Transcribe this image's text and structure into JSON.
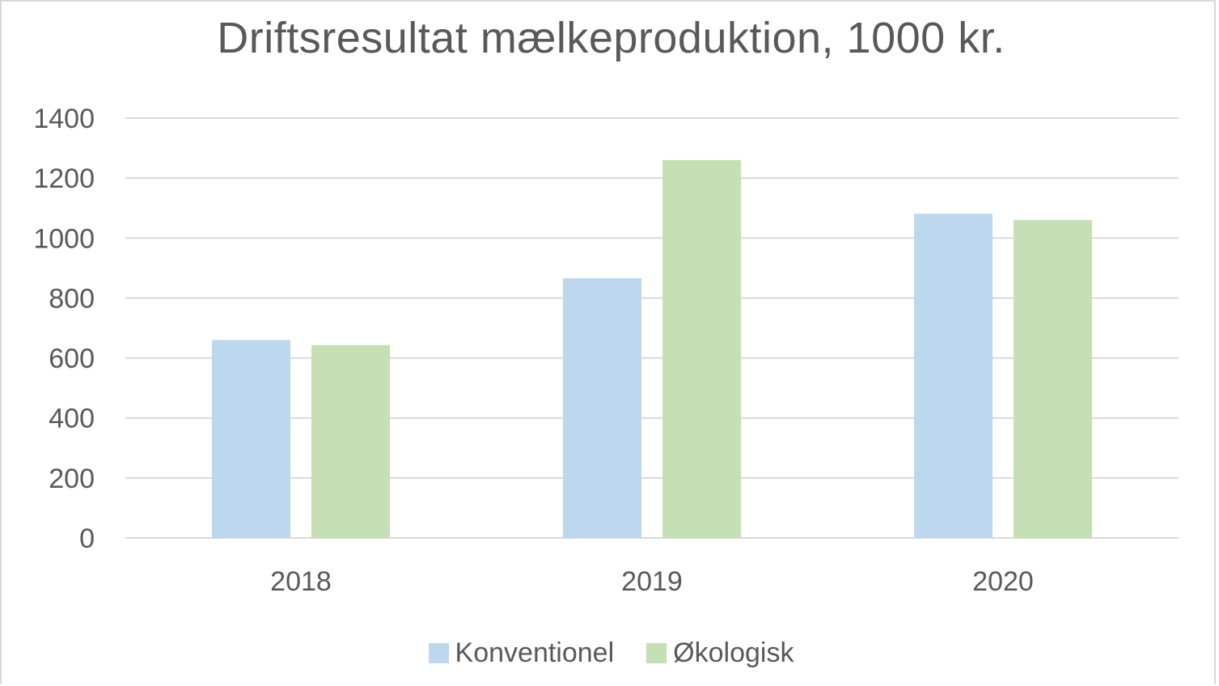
{
  "chart_data": {
    "type": "bar",
    "title": "Driftsresultat mælkeproduktion, 1000 kr.",
    "categories": [
      "2018",
      "2019",
      "2020"
    ],
    "series": [
      {
        "name": "Konventionel",
        "values": [
          660,
          866,
          1081
        ],
        "color": "#bdd7ee"
      },
      {
        "name": "Økologisk",
        "values": [
          643,
          1260,
          1060
        ],
        "color": "#c5e0b4"
      }
    ],
    "ylim": [
      0,
      1400
    ],
    "yticks": [
      0,
      200,
      400,
      600,
      800,
      1000,
      1200,
      1400
    ],
    "grid": true,
    "legend_position": "bottom"
  }
}
